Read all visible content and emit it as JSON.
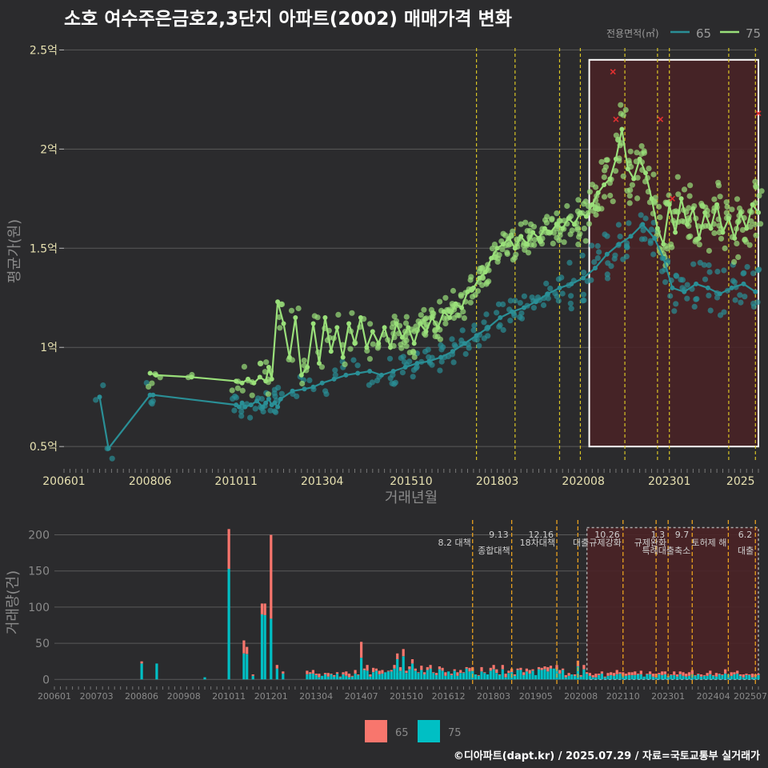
{
  "title": "소호 여수주은금호2,3단지 아파트(2002) 매매가격 변화",
  "footer": "©디아파트(dapt.kr) / 2025.07.29 / 자료=국토교통부 실거래가",
  "colors": {
    "bg": "#2b2b2d",
    "grid": "#5a5a5a",
    "s65_line": "#2a8f96",
    "s75_line": "#9ae07a",
    "bar65": "#f8766d",
    "bar75": "#00bfc4",
    "highlight_fill": "#4a2226",
    "vline": "#d8c425",
    "marker": "#e03030"
  },
  "chart_data": [
    {
      "type": "scatter",
      "name": "price",
      "ylabel": "평균가(원)",
      "xlabel": "거래년월",
      "ylim": [
        0.42,
        2.55
      ],
      "x_range": [
        "2006-01",
        "2025-07"
      ],
      "y_ticks": [
        {
          "value": 0.5,
          "label": "0.5억"
        },
        {
          "value": 1.0,
          "label": "1억"
        },
        {
          "value": 1.5,
          "label": "1.5억"
        },
        {
          "value": 2.0,
          "label": "2억"
        },
        {
          "value": 2.5,
          "label": "2.5억"
        }
      ],
      "x_ticks": [
        "200601",
        "200806",
        "201011",
        "201304",
        "201510",
        "201803",
        "202008",
        "202301",
        "2025"
      ],
      "legend_title": "전용면적(㎡)",
      "legend_position": "top-right",
      "highlight": {
        "from": "2020-10",
        "to": "2025-07",
        "ymin": 0.5,
        "ymax": 2.45
      },
      "policy_lines": [
        "2017-08",
        "2018-09",
        "2019-12",
        "2020-07",
        "2021-10",
        "2022-09",
        "2023-01",
        "2024-09",
        "2025-06"
      ],
      "series": [
        {
          "name": "65",
          "points": [
            [
              "2007-01",
              0.75
            ],
            [
              "2007-04",
              0.49
            ],
            [
              "2008-06",
              0.76
            ],
            [
              "2008-07",
              0.76
            ],
            [
              "2010-11",
              0.71
            ],
            [
              "2010-12",
              0.7
            ],
            [
              "2011-01",
              0.72
            ],
            [
              "2011-02",
              0.7
            ],
            [
              "2011-04",
              0.71
            ],
            [
              "2011-06",
              0.73
            ],
            [
              "2011-08",
              0.7
            ],
            [
              "2011-09",
              0.72
            ],
            [
              "2011-10",
              0.74
            ],
            [
              "2011-11",
              0.71
            ],
            [
              "2011-12",
              0.72
            ],
            [
              "2012-01",
              0.7
            ],
            [
              "2012-02",
              0.74
            ],
            [
              "2012-06",
              0.78
            ],
            [
              "2012-10",
              0.79
            ],
            [
              "2013-01",
              0.8
            ],
            [
              "2013-04",
              0.82
            ],
            [
              "2013-08",
              0.84
            ],
            [
              "2013-12",
              0.86
            ],
            [
              "2014-04",
              0.87
            ],
            [
              "2014-08",
              0.88
            ],
            [
              "2014-12",
              0.86
            ],
            [
              "2015-04",
              0.88
            ],
            [
              "2015-08",
              0.9
            ],
            [
              "2015-12",
              0.92
            ],
            [
              "2016-04",
              0.93
            ],
            [
              "2016-08",
              0.95
            ],
            [
              "2016-12",
              0.98
            ],
            [
              "2017-04",
              1.02
            ],
            [
              "2017-08",
              1.06
            ],
            [
              "2017-12",
              1.1
            ],
            [
              "2018-04",
              1.15
            ],
            [
              "2018-08",
              1.18
            ],
            [
              "2018-12",
              1.2
            ],
            [
              "2019-04",
              1.23
            ],
            [
              "2019-08",
              1.27
            ],
            [
              "2019-12",
              1.3
            ],
            [
              "2020-04",
              1.32
            ],
            [
              "2020-08",
              1.35
            ],
            [
              "2020-12",
              1.4
            ],
            [
              "2021-04",
              1.47
            ],
            [
              "2021-08",
              1.52
            ],
            [
              "2021-12",
              1.56
            ],
            [
              "2022-04",
              1.62
            ],
            [
              "2022-08",
              1.55
            ],
            [
              "2022-11",
              1.45
            ],
            [
              "2023-02",
              1.3
            ],
            [
              "2023-06",
              1.28
            ],
            [
              "2023-10",
              1.32
            ],
            [
              "2024-02",
              1.3
            ],
            [
              "2024-06",
              1.27
            ],
            [
              "2024-10",
              1.3
            ],
            [
              "2025-02",
              1.32
            ],
            [
              "2025-06",
              1.28
            ]
          ]
        },
        {
          "name": "75",
          "points": [
            [
              "2008-06",
              0.87
            ],
            [
              "2008-08",
              0.86
            ],
            [
              "2009-08",
              0.85
            ],
            [
              "2010-11",
              0.83
            ],
            [
              "2011-01",
              0.82
            ],
            [
              "2011-03",
              0.84
            ],
            [
              "2011-05",
              0.82
            ],
            [
              "2011-07",
              0.85
            ],
            [
              "2011-09",
              0.83
            ],
            [
              "2011-10",
              0.9
            ],
            [
              "2011-11",
              0.84
            ],
            [
              "2012-01",
              1.23
            ],
            [
              "2012-03",
              1.12
            ],
            [
              "2012-05",
              0.95
            ],
            [
              "2012-07",
              1.15
            ],
            [
              "2012-09",
              0.86
            ],
            [
              "2012-11",
              0.9
            ],
            [
              "2013-01",
              1.12
            ],
            [
              "2013-03",
              0.92
            ],
            [
              "2013-05",
              1.15
            ],
            [
              "2013-07",
              0.98
            ],
            [
              "2013-09",
              1.1
            ],
            [
              "2013-11",
              0.95
            ],
            [
              "2014-01",
              1.12
            ],
            [
              "2014-03",
              1.02
            ],
            [
              "2014-05",
              1.15
            ],
            [
              "2014-07",
              1.0
            ],
            [
              "2014-09",
              1.08
            ],
            [
              "2014-11",
              1.02
            ],
            [
              "2015-01",
              1.1
            ],
            [
              "2015-03",
              1.0
            ],
            [
              "2015-05",
              1.12
            ],
            [
              "2015-07",
              1.05
            ],
            [
              "2015-09",
              1.1
            ],
            [
              "2015-11",
              1.02
            ],
            [
              "2016-01",
              1.12
            ],
            [
              "2016-03",
              1.08
            ],
            [
              "2016-05",
              1.15
            ],
            [
              "2016-07",
              1.1
            ],
            [
              "2016-09",
              1.18
            ],
            [
              "2016-11",
              1.15
            ],
            [
              "2017-01",
              1.22
            ],
            [
              "2017-03",
              1.2
            ],
            [
              "2017-05",
              1.28
            ],
            [
              "2017-07",
              1.3
            ],
            [
              "2017-09",
              1.35
            ],
            [
              "2017-11",
              1.38
            ],
            [
              "2018-01",
              1.45
            ],
            [
              "2018-03",
              1.5
            ],
            [
              "2018-05",
              1.52
            ],
            [
              "2018-07",
              1.55
            ],
            [
              "2018-09",
              1.5
            ],
            [
              "2018-11",
              1.56
            ],
            [
              "2019-01",
              1.52
            ],
            [
              "2019-03",
              1.58
            ],
            [
              "2019-05",
              1.55
            ],
            [
              "2019-07",
              1.6
            ],
            [
              "2019-09",
              1.58
            ],
            [
              "2019-11",
              1.62
            ],
            [
              "2020-01",
              1.6
            ],
            [
              "2020-03",
              1.65
            ],
            [
              "2020-05",
              1.62
            ],
            [
              "2020-07",
              1.68
            ],
            [
              "2020-09",
              1.66
            ],
            [
              "2020-11",
              1.72
            ],
            [
              "2021-01",
              1.78
            ],
            [
              "2021-03",
              1.82
            ],
            [
              "2021-05",
              1.85
            ],
            [
              "2021-07",
              1.95
            ],
            [
              "2021-09",
              2.1
            ],
            [
              "2021-11",
              1.9
            ],
            [
              "2022-01",
              1.85
            ],
            [
              "2022-03",
              1.95
            ],
            [
              "2022-05",
              1.88
            ],
            [
              "2022-07",
              1.75
            ],
            [
              "2022-09",
              1.6
            ],
            [
              "2022-11",
              1.52
            ],
            [
              "2023-01",
              1.72
            ],
            [
              "2023-03",
              1.58
            ],
            [
              "2023-05",
              1.75
            ],
            [
              "2023-07",
              1.62
            ],
            [
              "2023-09",
              1.7
            ],
            [
              "2023-11",
              1.55
            ],
            [
              "2024-01",
              1.68
            ],
            [
              "2024-03",
              1.6
            ],
            [
              "2024-05",
              1.72
            ],
            [
              "2024-07",
              1.58
            ],
            [
              "2024-09",
              1.65
            ],
            [
              "2024-11",
              1.55
            ],
            [
              "2025-01",
              1.68
            ],
            [
              "2025-03",
              1.6
            ],
            [
              "2025-05",
              1.72
            ],
            [
              "2025-07",
              1.68
            ]
          ]
        }
      ]
    },
    {
      "type": "bar",
      "name": "volume",
      "ylabel": "거래량(건)",
      "ylim": [
        -3,
        215
      ],
      "y_ticks": [
        0,
        50,
        100,
        150,
        200
      ],
      "x_ticks": [
        "200601",
        "200703",
        "200806",
        "200908",
        "201011",
        "201201",
        "201304",
        "201407",
        "201510",
        "201612",
        "201803",
        "201905",
        "202008",
        "202110",
        "202301",
        "202404",
        "202507"
      ],
      "legend_position": "bottom",
      "highlight": {
        "from": "2020-10",
        "to": "2025-07",
        "ymax": 210
      },
      "bars": [
        {
          "month": "2008-06",
          "v65": 3,
          "v75": 22
        },
        {
          "month": "2008-11",
          "v65": 0,
          "v75": 22
        },
        {
          "month": "2010-03",
          "v65": 0,
          "v75": 3
        },
        {
          "month": "2010-11",
          "v65": 55,
          "v75": 153
        },
        {
          "month": "2011-04",
          "v65": 18,
          "v75": 36
        },
        {
          "month": "2011-05",
          "v65": 10,
          "v75": 35
        },
        {
          "month": "2011-07",
          "v65": 2,
          "v75": 5
        },
        {
          "month": "2011-10",
          "v65": 15,
          "v75": 90
        },
        {
          "month": "2011-11",
          "v65": 16,
          "v75": 89
        },
        {
          "month": "2012-01",
          "v65": 116,
          "v75": 84
        },
        {
          "month": "2012-03",
          "v65": 5,
          "v75": 15
        },
        {
          "month": "2012-05",
          "v65": 3,
          "v75": 8
        },
        {
          "month": "2014-07",
          "v65": 22,
          "v75": 30
        },
        {
          "month": "2014-09",
          "v65": 8,
          "v75": 12
        },
        {
          "month": "2015-07",
          "v65": 8,
          "v75": 28
        },
        {
          "month": "2015-09",
          "v65": 10,
          "v75": 32
        },
        {
          "month": "2015-12",
          "v65": 6,
          "v75": 22
        },
        {
          "month": "2016-06",
          "v65": 5,
          "v75": 15
        },
        {
          "month": "2017-08",
          "v65": 5,
          "v75": 12
        },
        {
          "month": "2018-09",
          "v65": 5,
          "v75": 10
        },
        {
          "month": "2019-12",
          "v65": 6,
          "v75": 14
        },
        {
          "month": "2020-07",
          "v65": 8,
          "v75": 18
        },
        {
          "month": "2020-09",
          "v65": 6,
          "v75": 14
        }
      ],
      "policy_lines": [
        {
          "month": "2017-08",
          "date": "",
          "label": "8.2 대책"
        },
        {
          "month": "2018-09",
          "date": "9.13",
          "label": "종합대책"
        },
        {
          "month": "2019-12",
          "date": "12.16",
          "label": "18차대책"
        },
        {
          "month": "2020-07",
          "date": "",
          "label": ""
        },
        {
          "month": "2021-10",
          "date": "10.26",
          "label": "대출규제강화"
        },
        {
          "month": "2022-09",
          "date": "",
          "label": ""
        },
        {
          "month": "2023-01",
          "date": "1.3",
          "label": "규제완화"
        },
        {
          "month": "2023-09",
          "date": "9.7",
          "label": "특례대출축소"
        },
        {
          "month": "2024-09",
          "date": "",
          "label": "토허제 해"
        },
        {
          "month": "2025-06",
          "date": "6.2",
          "label": "대출"
        }
      ],
      "series": [
        {
          "name": "65",
          "color": "#f8766d"
        },
        {
          "name": "75",
          "color": "#00bfc4"
        }
      ]
    }
  ]
}
